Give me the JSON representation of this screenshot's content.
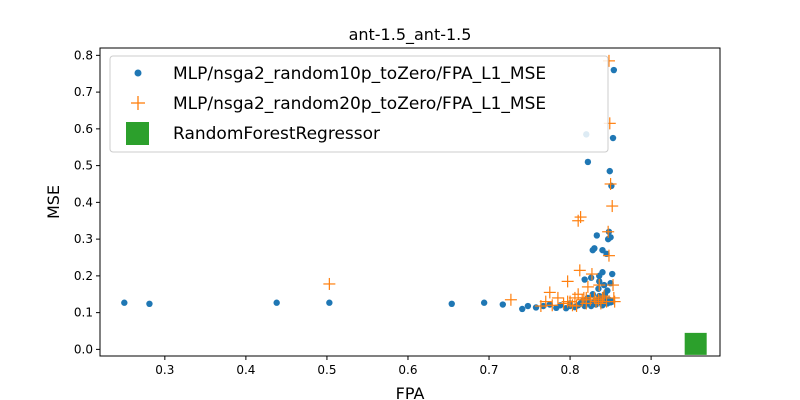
{
  "chart_data": {
    "type": "scatter",
    "title": "ant-1.5_ant-1.5",
    "xlabel": "FPA",
    "ylabel": "MSE",
    "xlim": [
      0.22,
      0.985
    ],
    "ylim": [
      -0.018,
      0.82
    ],
    "xticks": [
      "0.3",
      "0.4",
      "0.5",
      "0.6",
      "0.7",
      "0.8",
      "0.9"
    ],
    "yticks": [
      "0.0",
      "0.1",
      "0.2",
      "0.3",
      "0.4",
      "0.5",
      "0.6",
      "0.7",
      "0.8"
    ],
    "grid": false,
    "legend_position": "top-left",
    "series": [
      {
        "name": "MLP/nsga2_random10p_toZero/FPA_L1_MSE",
        "marker": "circle",
        "color": "#1f77b4",
        "points": [
          [
            0.25,
            0.127
          ],
          [
            0.281,
            0.124
          ],
          [
            0.438,
            0.127
          ],
          [
            0.503,
            0.127
          ],
          [
            0.654,
            0.124
          ],
          [
            0.694,
            0.127
          ],
          [
            0.717,
            0.122
          ],
          [
            0.741,
            0.11
          ],
          [
            0.748,
            0.118
          ],
          [
            0.758,
            0.114
          ],
          [
            0.767,
            0.118
          ],
          [
            0.775,
            0.122
          ],
          [
            0.783,
            0.113
          ],
          [
            0.788,
            0.12
          ],
          [
            0.795,
            0.112
          ],
          [
            0.8,
            0.118
          ],
          [
            0.806,
            0.115
          ],
          [
            0.81,
            0.12
          ],
          [
            0.813,
            0.125
          ],
          [
            0.815,
            0.13
          ],
          [
            0.818,
            0.118
          ],
          [
            0.82,
            0.135
          ],
          [
            0.822,
            0.14
          ],
          [
            0.824,
            0.125
          ],
          [
            0.826,
            0.118
          ],
          [
            0.828,
            0.15
          ],
          [
            0.83,
            0.13
          ],
          [
            0.832,
            0.122
          ],
          [
            0.834,
            0.135
          ],
          [
            0.836,
            0.145
          ],
          [
            0.838,
            0.128
          ],
          [
            0.84,
            0.12
          ],
          [
            0.842,
            0.14
          ],
          [
            0.844,
            0.13
          ],
          [
            0.846,
            0.125
          ],
          [
            0.848,
            0.135
          ],
          [
            0.85,
            0.128
          ],
          [
            0.852,
            0.13
          ],
          [
            0.836,
            0.2
          ],
          [
            0.842,
            0.175
          ],
          [
            0.846,
            0.16
          ],
          [
            0.85,
            0.18
          ],
          [
            0.852,
            0.205
          ],
          [
            0.84,
            0.21
          ],
          [
            0.835,
            0.165
          ],
          [
            0.828,
            0.27
          ],
          [
            0.83,
            0.275
          ],
          [
            0.833,
            0.31
          ],
          [
            0.84,
            0.27
          ],
          [
            0.845,
            0.26
          ],
          [
            0.847,
            0.3
          ],
          [
            0.85,
            0.305
          ],
          [
            0.848,
            0.32
          ],
          [
            0.851,
            0.445
          ],
          [
            0.849,
            0.485
          ],
          [
            0.82,
            0.585
          ],
          [
            0.822,
            0.51
          ],
          [
            0.853,
            0.575
          ],
          [
            0.854,
            0.76
          ],
          [
            0.836,
            0.185
          ],
          [
            0.818,
            0.19
          ],
          [
            0.826,
            0.195
          ],
          [
            0.843,
            0.15
          ],
          [
            0.8,
            0.125
          ]
        ]
      },
      {
        "name": "MLP/nsga2_random20p_toZero/FPA_L1_MSE",
        "marker": "plus",
        "color": "#ff7f0e",
        "points": [
          [
            0.503,
            0.178
          ],
          [
            0.727,
            0.135
          ],
          [
            0.764,
            0.118
          ],
          [
            0.77,
            0.13
          ],
          [
            0.775,
            0.155
          ],
          [
            0.778,
            0.12
          ],
          [
            0.785,
            0.14
          ],
          [
            0.792,
            0.125
          ],
          [
            0.797,
            0.185
          ],
          [
            0.8,
            0.13
          ],
          [
            0.803,
            0.12
          ],
          [
            0.806,
            0.14
          ],
          [
            0.808,
            0.118
          ],
          [
            0.81,
            0.35
          ],
          [
            0.812,
            0.215
          ],
          [
            0.813,
            0.36
          ],
          [
            0.815,
            0.135
          ],
          [
            0.817,
            0.14
          ],
          [
            0.82,
            0.125
          ],
          [
            0.822,
            0.17
          ],
          [
            0.825,
            0.135
          ],
          [
            0.827,
            0.205
          ],
          [
            0.83,
            0.14
          ],
          [
            0.832,
            0.13
          ],
          [
            0.835,
            0.135
          ],
          [
            0.838,
            0.125
          ],
          [
            0.84,
            0.14
          ],
          [
            0.842,
            0.145
          ],
          [
            0.845,
            0.13
          ],
          [
            0.847,
            0.32
          ],
          [
            0.848,
            0.255
          ],
          [
            0.848,
            0.785
          ],
          [
            0.849,
            0.615
          ],
          [
            0.85,
            0.45
          ],
          [
            0.852,
            0.39
          ],
          [
            0.853,
            0.175
          ],
          [
            0.854,
            0.14
          ],
          [
            0.855,
            0.13
          ],
          [
            0.836,
            0.175
          ],
          [
            0.81,
            0.15
          ],
          [
            0.797,
            0.13
          ],
          [
            0.82,
            0.14
          ]
        ]
      },
      {
        "name": "RandomForestRegressor",
        "marker": "square",
        "color": "#2ca02c",
        "points": [
          [
            0.955,
            0.015
          ]
        ]
      }
    ]
  }
}
